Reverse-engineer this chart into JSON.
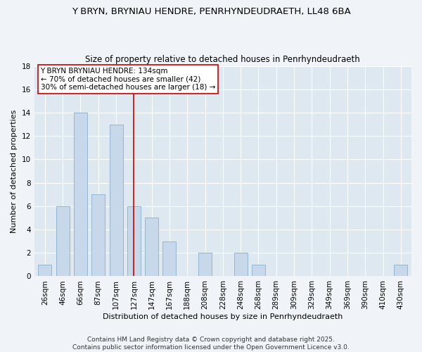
{
  "title": "Y BRYN, BRYNIAU HENDRE, PENRHYNDEUDRAETH, LL48 6BA",
  "subtitle": "Size of property relative to detached houses in Penrhyndeudraeth",
  "xlabel": "Distribution of detached houses by size in Penrhyndeudraeth",
  "ylabel": "Number of detached properties",
  "bar_color": "#c8d8eb",
  "bar_edge_color": "#8aaec8",
  "categories": [
    "26sqm",
    "46sqm",
    "66sqm",
    "87sqm",
    "107sqm",
    "127sqm",
    "147sqm",
    "167sqm",
    "188sqm",
    "208sqm",
    "228sqm",
    "248sqm",
    "268sqm",
    "289sqm",
    "309sqm",
    "329sqm",
    "349sqm",
    "369sqm",
    "390sqm",
    "410sqm",
    "430sqm"
  ],
  "values": [
    1,
    6,
    14,
    7,
    13,
    6,
    5,
    3,
    0,
    2,
    0,
    2,
    1,
    0,
    0,
    0,
    0,
    0,
    0,
    0,
    1
  ],
  "ylim": [
    0,
    18
  ],
  "yticks": [
    0,
    2,
    4,
    6,
    8,
    10,
    12,
    14,
    16,
    18
  ],
  "vline_color": "#cc0000",
  "vline_x_index": 5,
  "annotation_line1": "Y BRYN BRYNIAU HENDRE: 134sqm",
  "annotation_line2": "← 70% of detached houses are smaller (42)",
  "annotation_line3": "30% of semi-detached houses are larger (18) →",
  "annotation_box_color": "#ffffff",
  "annotation_box_edge": "#cc0000",
  "footer": "Contains HM Land Registry data © Crown copyright and database right 2025.\nContains public sector information licensed under the Open Government Licence v3.0.",
  "bg_color": "#f0f4f8",
  "plot_bg_color": "#dde8f0",
  "grid_color": "#ffffff",
  "title_fontsize": 9.5,
  "subtitle_fontsize": 8.5,
  "axis_label_fontsize": 8,
  "tick_fontsize": 7.5,
  "annotation_fontsize": 7.5,
  "footer_fontsize": 6.5
}
